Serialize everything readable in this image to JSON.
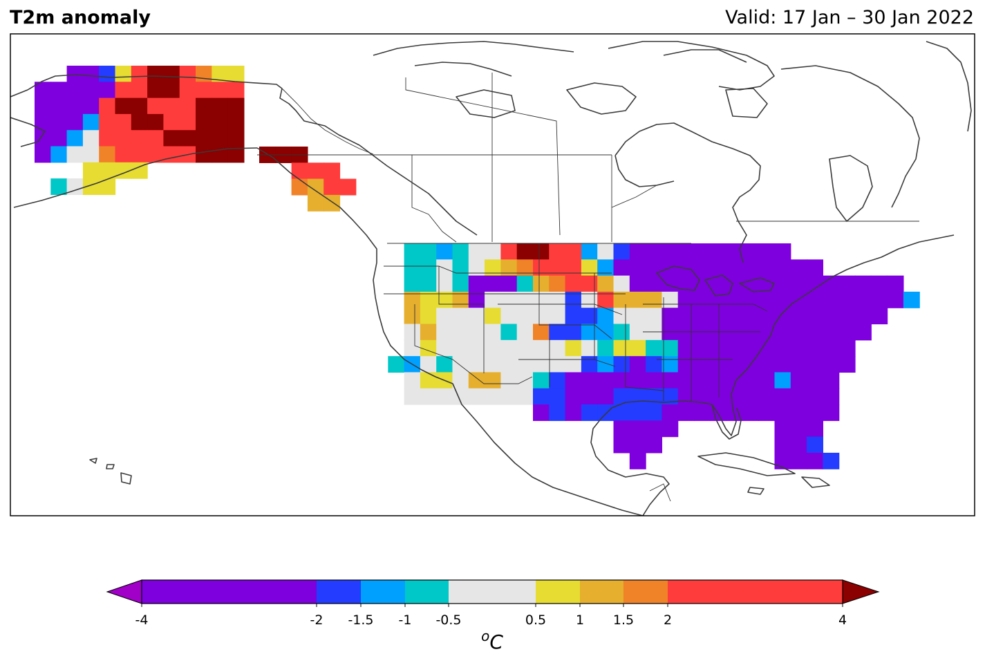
{
  "header": {
    "title": "T2m anomaly",
    "valid": "Valid: 17 Jan – 30 Jan 2022"
  },
  "colorbar": {
    "unit_base": "o",
    "unit_sup": "C",
    "tick_values": [
      -4,
      -2,
      -1.5,
      -1,
      -0.5,
      0.5,
      1,
      1.5,
      2,
      4
    ],
    "tick_labels": [
      "-4",
      "-2",
      "-1.5",
      "-1",
      "-0.5",
      "0.5",
      "1",
      "1.5",
      "2",
      "4"
    ],
    "bins": [
      {
        "from": -4,
        "to": -2,
        "color": "#7f00df"
      },
      {
        "from": -2,
        "to": -1.5,
        "color": "#233cff"
      },
      {
        "from": -1.5,
        "to": -1,
        "color": "#00a0ff"
      },
      {
        "from": -1,
        "to": -0.5,
        "color": "#00c8c8"
      },
      {
        "from": -0.5,
        "to": 0.5,
        "color": "#e6e6e6"
      },
      {
        "from": 0.5,
        "to": 1,
        "color": "#e6dc32"
      },
      {
        "from": 1,
        "to": 1.5,
        "color": "#e6af2d"
      },
      {
        "from": 1.5,
        "to": 2,
        "color": "#f08228"
      },
      {
        "from": 2,
        "to": 4,
        "color": "#ff3c3c"
      }
    ],
    "under_color": "#a000c8",
    "over_color": "#8b0000"
  },
  "map_data": {
    "legend": {
      "V": "#7f00df",
      "B": "#233cff",
      "S": "#00a0ff",
      "T": "#00c8c8",
      "W": "#e6e6e6",
      "Y": "#e6dc32",
      "G": "#e6af2d",
      "O": "#f08228",
      "R": "#ff3c3c",
      "D": "#8b0000",
      "P": "#a000c8"
    },
    "regions": [
      {
        "name": "alaska",
        "rows": [
          "..VVBYRDDROYY",
          "VVVVVRRDDRRRR",
          "VVVVRDDRRRDDD",
          "VVVSRRDDRRDDD",
          "VVSWRRRRDDDDD",
          "VSWWORRRRRDDD",
          "...YYYY......",
          ".TWYY........"
        ]
      },
      {
        "name": "alaska-panhandle",
        "rows": [
          "DDD...",
          "..RRR.",
          "..OGRR",
          "...GG."
        ]
      },
      {
        "name": "conus",
        "rows": [
          "..TTSTWWRDDRRSWBVVVVVVVVVV.......",
          "..TTWTWYGORRRYSVVVVVVVVVVVVV.....",
          "..TTWTVVVTGORRGWVVVVVVVVVVVVVVVVV",
          "..GYYGVWWWWWBWRGGGWVVVVVVVVVVVVVVS",
          "..GYWWWYWWWWBBSWWWVVVVVVVVVVVVVV.",
          "..WGWWWWTWOBBSSTWWVVVVVVVVVVVVV..",
          "..WYWWWWWWWWYWTYYTTVVVVVVVVVVV...",
          ".TSWTWWWWWWWWBSBVBSVVVVVVVVVVV...",
          "..WYYWGGWWTBVVVVVVVVVVVVVSVVV....",
          "..WWWWWWWWBBVVVBBBBVVVVVVVVVV....",
          "..........VBVBBBBBVVVVVVVVVVV....",
          "...............VVVV......VVV....",
          "...............VVV.......VVB....",
          "................V........VVVB..."
        ]
      }
    ]
  }
}
